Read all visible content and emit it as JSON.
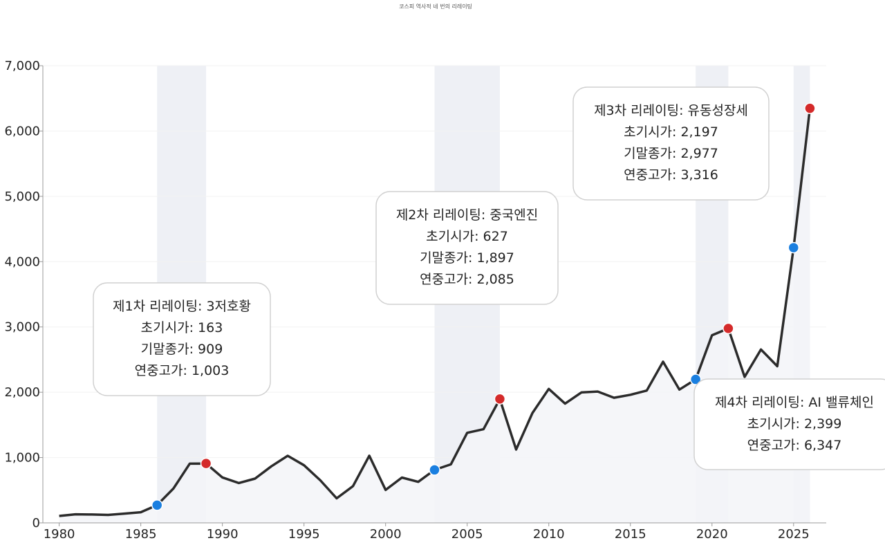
{
  "chart_data": {
    "type": "line",
    "title": "코스피 역사적 네 번의 리레이팅",
    "xlabel": "",
    "ylabel": "",
    "xlim": [
      1979,
      2027
    ],
    "ylim": [
      0,
      7000
    ],
    "x_ticks": [
      1980,
      1985,
      1990,
      1995,
      2000,
      2005,
      2010,
      2015,
      2020,
      2025
    ],
    "x_tick_labels": [
      "1980",
      "1985",
      "1990",
      "1995",
      "2000",
      "2005",
      "2010",
      "2015",
      "2020",
      "2025"
    ],
    "y_ticks": [
      0,
      1000,
      2000,
      3000,
      4000,
      5000,
      6000,
      7000
    ],
    "y_tick_labels": [
      "0",
      "1,000",
      "2,000",
      "3,000",
      "4,000",
      "5,000",
      "6,000",
      "7,000"
    ],
    "grid": "horizontal",
    "series": [
      {
        "x": [
          1980,
          1981,
          1982,
          1983,
          1984,
          1985,
          1986,
          1987,
          1988,
          1989,
          1990,
          1991,
          1992,
          1993,
          1994,
          1995,
          1996,
          1997,
          1998,
          1999,
          2000,
          2001,
          2002,
          2003,
          2004,
          2005,
          2006,
          2007,
          2008,
          2009,
          2010,
          2011,
          2012,
          2013,
          2014,
          2015,
          2016,
          2017,
          2018,
          2019,
          2020,
          2021,
          2022,
          2023,
          2024,
          2025,
          2026
        ],
        "values": [
          106,
          131,
          128,
          122,
          142,
          163,
          272,
          525,
          907,
          909,
          696,
          610,
          678,
          866,
          1027,
          882,
          651,
          376,
          562,
          1028,
          504,
          694,
          628,
          811,
          896,
          1379,
          1434,
          1897,
          1124,
          1683,
          2051,
          1826,
          1997,
          2011,
          1916,
          1961,
          2026,
          2467,
          2041,
          2197,
          2873,
          2977,
          2236,
          2655,
          2399,
          4214,
          6347
        ]
      }
    ],
    "colors": {
      "line": "#2b2b2b",
      "area": "#f3f4f8",
      "shade": "#eef0f5",
      "start_marker": "#1a7fe0",
      "end_marker": "#d42a2a"
    },
    "rerating_periods": [
      {
        "start": 1986,
        "end": 1989,
        "start_marker": {
          "x": 1986,
          "y": 272
        },
        "end_marker": {
          "x": 1989,
          "y": 909
        },
        "lines": [
          "제1차 리레이팅: 3저호황",
          "초기시가: 163",
          "기말종가: 909",
          "연중고가: 1,003"
        ]
      },
      {
        "start": 2003,
        "end": 2007,
        "start_marker": {
          "x": 2003,
          "y": 811
        },
        "end_marker": {
          "x": 2007,
          "y": 1897
        },
        "lines": [
          "제2차 리레이팅: 중국엔진",
          "초기시가: 627",
          "기말종가: 1,897",
          "연중고가: 2,085"
        ]
      },
      {
        "start": 2019,
        "end": 2021,
        "start_marker": {
          "x": 2019,
          "y": 2197
        },
        "end_marker": {
          "x": 2021,
          "y": 2977
        },
        "lines": [
          "제3차 리레이팅: 유동성장세",
          "초기시가: 2,197",
          "기말종가: 2,977",
          "연중고가: 3,316"
        ]
      },
      {
        "start": 2025,
        "end": 2026,
        "start_marker": {
          "x": 2025,
          "y": 4214
        },
        "end_marker": {
          "x": 2026,
          "y": 6347
        },
        "lines": [
          "제4차 리레이팅: AI 밸류체인",
          "초기시가: 2,399",
          "연중고가: 6,347"
        ]
      }
    ]
  }
}
